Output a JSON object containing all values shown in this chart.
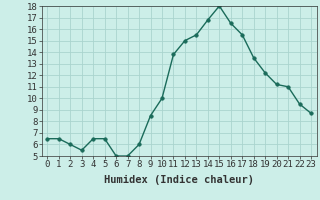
{
  "x": [
    0,
    1,
    2,
    3,
    4,
    5,
    6,
    7,
    8,
    9,
    10,
    11,
    12,
    13,
    14,
    15,
    16,
    17,
    18,
    19,
    20,
    21,
    22,
    23
  ],
  "y": [
    6.5,
    6.5,
    6.0,
    5.5,
    6.5,
    6.5,
    5.0,
    5.0,
    6.0,
    8.5,
    10.0,
    13.8,
    15.0,
    15.5,
    16.8,
    18.0,
    16.5,
    15.5,
    13.5,
    12.2,
    11.2,
    11.0,
    9.5,
    8.7
  ],
  "line_color": "#1a6b5a",
  "marker_color": "#1a6b5a",
  "bg_color": "#cceee8",
  "grid_color": "#aad4ce",
  "xlabel": "Humidex (Indice chaleur)",
  "ylim": [
    5,
    18
  ],
  "xlim": [
    -0.5,
    23.5
  ],
  "yticks": [
    5,
    6,
    7,
    8,
    9,
    10,
    11,
    12,
    13,
    14,
    15,
    16,
    17,
    18
  ],
  "xticks": [
    0,
    1,
    2,
    3,
    4,
    5,
    6,
    7,
    8,
    9,
    10,
    11,
    12,
    13,
    14,
    15,
    16,
    17,
    18,
    19,
    20,
    21,
    22,
    23
  ],
  "tick_color": "#333333",
  "font_size": 6.5,
  "label_font_size": 7.5,
  "marker_size": 2.5,
  "line_width": 1.0
}
